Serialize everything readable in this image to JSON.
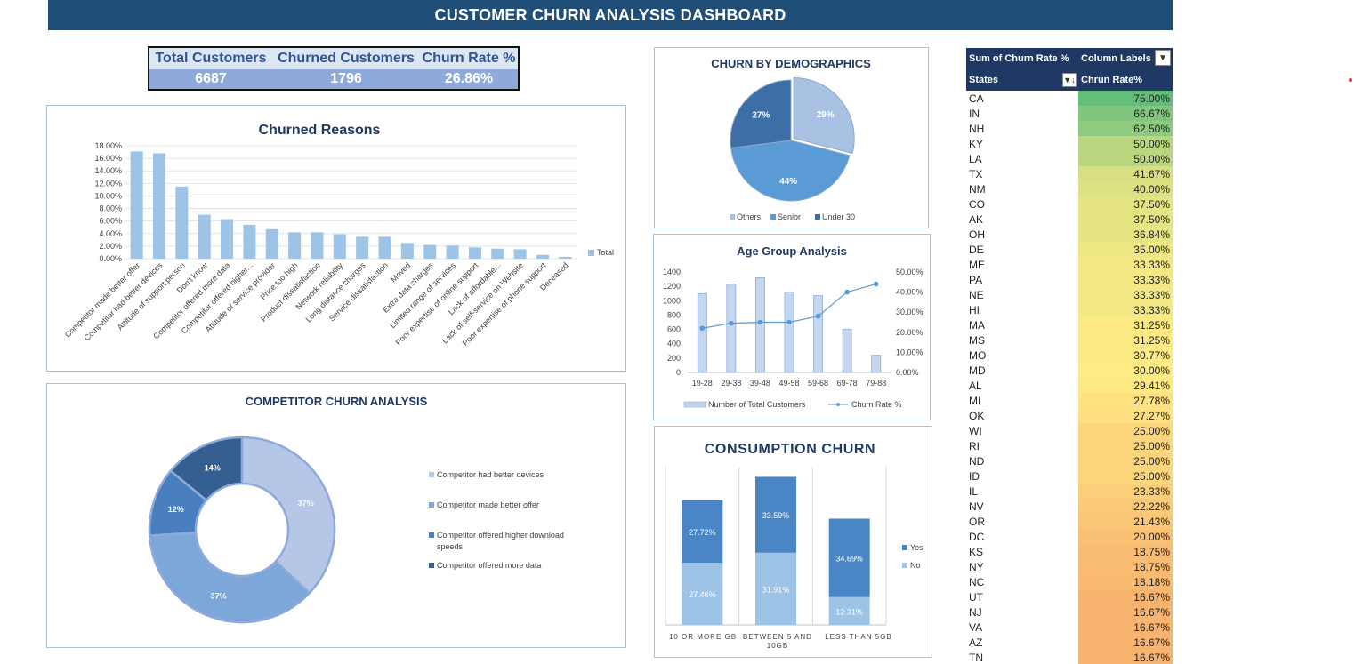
{
  "dashboard": {
    "title": "CUSTOMER CHURN ANALYSIS DASHBOARD"
  },
  "kpi": {
    "total_label": "Total Customers",
    "total_value": "6687",
    "churned_label": "Churned Customers",
    "churned_value": "1796",
    "rate_label": "Churn Rate %",
    "rate_value": "26.86%"
  },
  "chart_data": [
    {
      "id": "churned_reasons",
      "type": "bar",
      "title": "Churned Reasons",
      "categories": [
        "Competitor made better offer",
        "Competitor had better devices",
        "Attitude of support person",
        "Don't know",
        "Competitor offered more data",
        "Competitor offered higher...",
        "Attitude of service provider",
        "Price too high",
        "Product dissatisfaction",
        "Network reliability",
        "Long distance charges",
        "Service dissatisfaction",
        "Moved",
        "Extra data charges",
        "Limited range of services",
        "Poor expertise of online support",
        "Lack of affordable...",
        "Lack of self-service on Website",
        "Poor expertise of phone support",
        "Deceased"
      ],
      "series": [
        {
          "name": "Total",
          "values": [
            17.1,
            16.8,
            11.5,
            7.0,
            6.3,
            5.4,
            4.7,
            4.2,
            4.2,
            3.9,
            3.5,
            3.5,
            2.5,
            2.2,
            2.1,
            1.8,
            1.6,
            1.5,
            0.6,
            0.3
          ]
        }
      ],
      "yticks": [
        "0.00%",
        "2.00%",
        "4.00%",
        "6.00%",
        "8.00%",
        "10.00%",
        "12.00%",
        "14.00%",
        "16.00%",
        "18.00%"
      ],
      "ylim": [
        0,
        18
      ],
      "legend": "right"
    },
    {
      "id": "demographics",
      "type": "pie",
      "title": "CHURN BY DEMOGRAPHICS",
      "categories": [
        "Others",
        "Senior",
        "Under 30"
      ],
      "values": [
        29,
        44,
        27
      ],
      "labels": [
        "29%",
        "44%",
        "27%"
      ],
      "colors": [
        "#a9c2e3",
        "#5b9bd5",
        "#3d6ea6"
      ],
      "legend": "bottom"
    },
    {
      "id": "age_group",
      "type": "bar",
      "title": "Age Group Analysis",
      "categories": [
        "19-28",
        "29-38",
        "39-48",
        "49-58",
        "59-68",
        "69-78",
        "79-88"
      ],
      "series": [
        {
          "name": "Number of Total Customers",
          "type": "bar",
          "values": [
            1100,
            1230,
            1320,
            1120,
            1070,
            600,
            240
          ]
        },
        {
          "name": "Churn Rate %",
          "type": "line",
          "axis": "right",
          "values": [
            22,
            24.5,
            25,
            25,
            28,
            40,
            44
          ]
        }
      ],
      "yticks_left": [
        "0",
        "200",
        "400",
        "600",
        "800",
        "1000",
        "1200",
        "1400"
      ],
      "yticks_right": [
        "0.00%",
        "10.00%",
        "20.00%",
        "30.00%",
        "40.00%",
        "50.00%"
      ],
      "ylim_left": [
        0,
        1400
      ],
      "ylim_right": [
        0,
        50
      ],
      "legend": "bottom"
    },
    {
      "id": "competitor",
      "type": "pie",
      "title": "COMPETITOR CHURN ANALYSIS",
      "categories": [
        "Competitor had better devices",
        "Competitor made better offer",
        "Competitor offered higher download speeds",
        "Competitor offered more data"
      ],
      "values": [
        37,
        37,
        12,
        14
      ],
      "labels": [
        "37%",
        "37%",
        "12%",
        "14%"
      ],
      "colors": [
        "#b4c7e7",
        "#7da7d9",
        "#4a7fbf",
        "#355f91"
      ],
      "legend": "right"
    },
    {
      "id": "consumption",
      "type": "bar",
      "title": "CONSUMPTION CHURN",
      "categories": [
        "10 OR MORE GB",
        "BETWEEN 5 AND 10GB",
        "LESS THAN 5GB"
      ],
      "series": [
        {
          "name": "No",
          "values": [
            27.46,
            31.91,
            12.31
          ],
          "labels": [
            "27.46%",
            "31.91%",
            "12.31%"
          ]
        },
        {
          "name": "Yes",
          "values": [
            27.72,
            33.59,
            34.69
          ],
          "labels": [
            "27.72%",
            "33.59%",
            "34.69%"
          ]
        }
      ],
      "stacked": true,
      "legend": "right"
    },
    {
      "id": "state_pivot",
      "type": "table",
      "headers": [
        "Sum of Churn Rate %",
        "Column Labels",
        "States",
        "Chrun Rate%"
      ],
      "rows": [
        {
          "state": "CA",
          "rate": "75.00%",
          "value": 75.0
        },
        {
          "state": "IN",
          "rate": "66.67%",
          "value": 66.67
        },
        {
          "state": "NH",
          "rate": "62.50%",
          "value": 62.5
        },
        {
          "state": "KY",
          "rate": "50.00%",
          "value": 50.0
        },
        {
          "state": "LA",
          "rate": "50.00%",
          "value": 50.0
        },
        {
          "state": "TX",
          "rate": "41.67%",
          "value": 41.67
        },
        {
          "state": "NM",
          "rate": "40.00%",
          "value": 40.0
        },
        {
          "state": "CO",
          "rate": "37.50%",
          "value": 37.5
        },
        {
          "state": "AK",
          "rate": "37.50%",
          "value": 37.5
        },
        {
          "state": "OH",
          "rate": "36.84%",
          "value": 36.84
        },
        {
          "state": "DE",
          "rate": "35.00%",
          "value": 35.0
        },
        {
          "state": "ME",
          "rate": "33.33%",
          "value": 33.33
        },
        {
          "state": "PA",
          "rate": "33.33%",
          "value": 33.33
        },
        {
          "state": "NE",
          "rate": "33.33%",
          "value": 33.33
        },
        {
          "state": "HI",
          "rate": "33.33%",
          "value": 33.33
        },
        {
          "state": "MA",
          "rate": "31.25%",
          "value": 31.25
        },
        {
          "state": "MS",
          "rate": "31.25%",
          "value": 31.25
        },
        {
          "state": "MO",
          "rate": "30.77%",
          "value": 30.77
        },
        {
          "state": "MD",
          "rate": "30.00%",
          "value": 30.0
        },
        {
          "state": "AL",
          "rate": "29.41%",
          "value": 29.41
        },
        {
          "state": "MI",
          "rate": "27.78%",
          "value": 27.78
        },
        {
          "state": "OK",
          "rate": "27.27%",
          "value": 27.27
        },
        {
          "state": "WI",
          "rate": "25.00%",
          "value": 25.0
        },
        {
          "state": "RI",
          "rate": "25.00%",
          "value": 25.0
        },
        {
          "state": "ND",
          "rate": "25.00%",
          "value": 25.0
        },
        {
          "state": "ID",
          "rate": "25.00%",
          "value": 25.0
        },
        {
          "state": "IL",
          "rate": "23.33%",
          "value": 23.33
        },
        {
          "state": "NV",
          "rate": "22.22%",
          "value": 22.22
        },
        {
          "state": "OR",
          "rate": "21.43%",
          "value": 21.43
        },
        {
          "state": "DC",
          "rate": "20.00%",
          "value": 20.0
        },
        {
          "state": "KS",
          "rate": "18.75%",
          "value": 18.75
        },
        {
          "state": "NY",
          "rate": "18.75%",
          "value": 18.75
        },
        {
          "state": "NC",
          "rate": "18.18%",
          "value": 18.18
        },
        {
          "state": "UT",
          "rate": "16.67%",
          "value": 16.67
        },
        {
          "state": "NJ",
          "rate": "16.67%",
          "value": 16.67
        },
        {
          "state": "VA",
          "rate": "16.67%",
          "value": 16.67
        },
        {
          "state": "AZ",
          "rate": "16.67%",
          "value": 16.67
        },
        {
          "state": "TN",
          "rate": "16.67%",
          "value": 16.67
        }
      ],
      "scale_colors": {
        "high": "#63be7b",
        "mid": "#ffeb84",
        "low": "#f8b36f"
      }
    }
  ]
}
